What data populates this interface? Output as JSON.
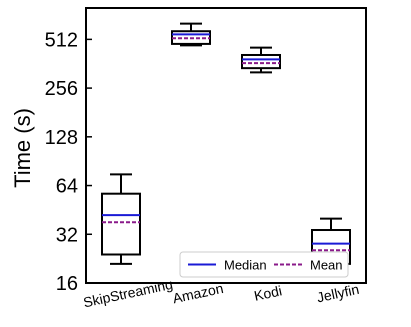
{
  "chart_data": {
    "type": "box",
    "ylabel": "Time (s)",
    "yscale": "log2",
    "ylim": [
      16,
      800
    ],
    "yticks": [
      "16",
      "32",
      "64",
      "128",
      "256",
      "512"
    ],
    "yticks_values": [
      16,
      32,
      64,
      128,
      256,
      512
    ],
    "categories": [
      "SkipStreaming",
      "Amazon",
      "Kodi",
      "Jellyfin"
    ],
    "boxes": [
      {
        "category": "SkipStreaming",
        "whisker_low": 21,
        "q1": 24,
        "median": 42,
        "mean": 38,
        "q3": 57,
        "whisker_high": 75
      },
      {
        "category": "Amazon",
        "whisker_low": 470,
        "q1": 480,
        "median": 550,
        "mean": 520,
        "q3": 575,
        "whisker_high": 640
      },
      {
        "category": "Kodi",
        "whisker_low": 320,
        "q1": 340,
        "median": 385,
        "mean": 365,
        "q3": 410,
        "whisker_high": 455
      },
      {
        "category": "Jellyfin",
        "whisker_low": 18,
        "q1": 21,
        "median": 28,
        "mean": 25.5,
        "q3": 34,
        "whisker_high": 40
      }
    ],
    "legend": {
      "position": "bottom-right",
      "entries": [
        {
          "label": "Median",
          "style": "solid",
          "color": "#1a1ad6"
        },
        {
          "label": "Mean",
          "style": "dashed",
          "color": "#8a1a8a"
        }
      ]
    },
    "colors": {
      "median": "#1a1ad6",
      "mean": "#8a1a8a",
      "box": "#000000"
    }
  }
}
